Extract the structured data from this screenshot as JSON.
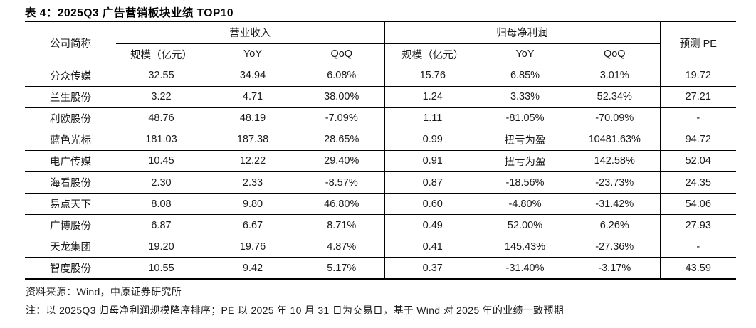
{
  "title": "表 4：2025Q3 广告营销板块业绩 TOP10",
  "table": {
    "company_header": "公司简称",
    "group_headers": [
      "营业收入",
      "归母净利润"
    ],
    "pe_header": "预测 PE",
    "sub_headers": [
      "规模（亿元）",
      "YoY",
      "QoQ",
      "规模（亿元）",
      "YoY",
      "QoQ"
    ],
    "rows": [
      {
        "company": "分众传媒",
        "cells": [
          "32.55",
          "34.94",
          "6.08%",
          "15.76",
          "6.85%",
          "3.01%",
          "19.72"
        ]
      },
      {
        "company": "兰生股份",
        "cells": [
          "3.22",
          "4.71",
          "38.00%",
          "1.24",
          "3.33%",
          "52.34%",
          "27.21"
        ]
      },
      {
        "company": "利欧股份",
        "cells": [
          "48.76",
          "48.19",
          "-7.09%",
          "1.11",
          "-81.05%",
          "-70.09%",
          "-"
        ]
      },
      {
        "company": "蓝色光标",
        "cells": [
          "181.03",
          "187.38",
          "28.65%",
          "0.99",
          "扭亏为盈",
          "10481.63%",
          "94.72"
        ]
      },
      {
        "company": "电广传媒",
        "cells": [
          "10.45",
          "12.22",
          "29.40%",
          "0.91",
          "扭亏为盈",
          "142.58%",
          "52.04"
        ]
      },
      {
        "company": "海看股份",
        "cells": [
          "2.30",
          "2.33",
          "-8.57%",
          "0.87",
          "-18.56%",
          "-23.73%",
          "24.35"
        ]
      },
      {
        "company": "易点天下",
        "cells": [
          "8.08",
          "9.80",
          "46.80%",
          "0.60",
          "-4.80%",
          "-31.42%",
          "54.06"
        ]
      },
      {
        "company": "广博股份",
        "cells": [
          "6.87",
          "6.67",
          "8.71%",
          "0.49",
          "52.00%",
          "6.26%",
          "27.93"
        ]
      },
      {
        "company": "天龙集团",
        "cells": [
          "19.20",
          "19.76",
          "4.87%",
          "0.41",
          "145.43%",
          "-27.36%",
          "-"
        ]
      },
      {
        "company": "智度股份",
        "cells": [
          "10.55",
          "9.42",
          "5.17%",
          "0.37",
          "-31.40%",
          "-3.17%",
          "43.59"
        ]
      }
    ]
  },
  "footer": {
    "source": "资料来源：Wind，中原证券研究所",
    "note": "注：以 2025Q3 归母净利润规模降序排序；PE 以 2025 年 10 月 31 日为交易日，基于 Wind 对 2025 年的业绩一致预期"
  },
  "colors": {
    "text": "#1a1a1a",
    "line": "#000000",
    "background": "#ffffff"
  }
}
